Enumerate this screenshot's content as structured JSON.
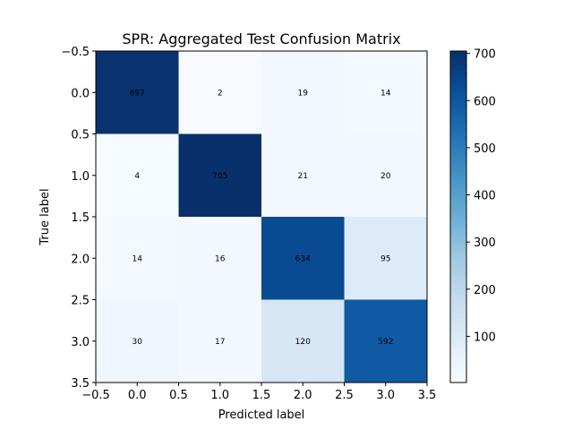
{
  "chart_data": {
    "type": "heatmap",
    "title": "SPR: Aggregated Test Confusion Matrix",
    "xlabel": "Predicted label",
    "ylabel": "True label",
    "x_ticks": [
      "−0.5",
      "0.0",
      "0.5",
      "1.0",
      "1.5",
      "2.0",
      "2.5",
      "3.0",
      "3.5"
    ],
    "y_ticks": [
      "−0.5",
      "0.0",
      "0.5",
      "1.0",
      "1.5",
      "2.0",
      "2.5",
      "3.0",
      "3.5"
    ],
    "xlim": [
      -0.5,
      3.5
    ],
    "ylim": [
      3.5,
      -0.5
    ],
    "matrix": [
      [
        697,
        2,
        19,
        14
      ],
      [
        4,
        705,
        21,
        20
      ],
      [
        14,
        16,
        634,
        95
      ],
      [
        30,
        17,
        120,
        592
      ]
    ],
    "colormap": "Blues",
    "colorbar": {
      "ticks": [
        "100",
        "200",
        "300",
        "400",
        "500",
        "600",
        "700"
      ],
      "range": [
        2,
        705
      ]
    }
  }
}
